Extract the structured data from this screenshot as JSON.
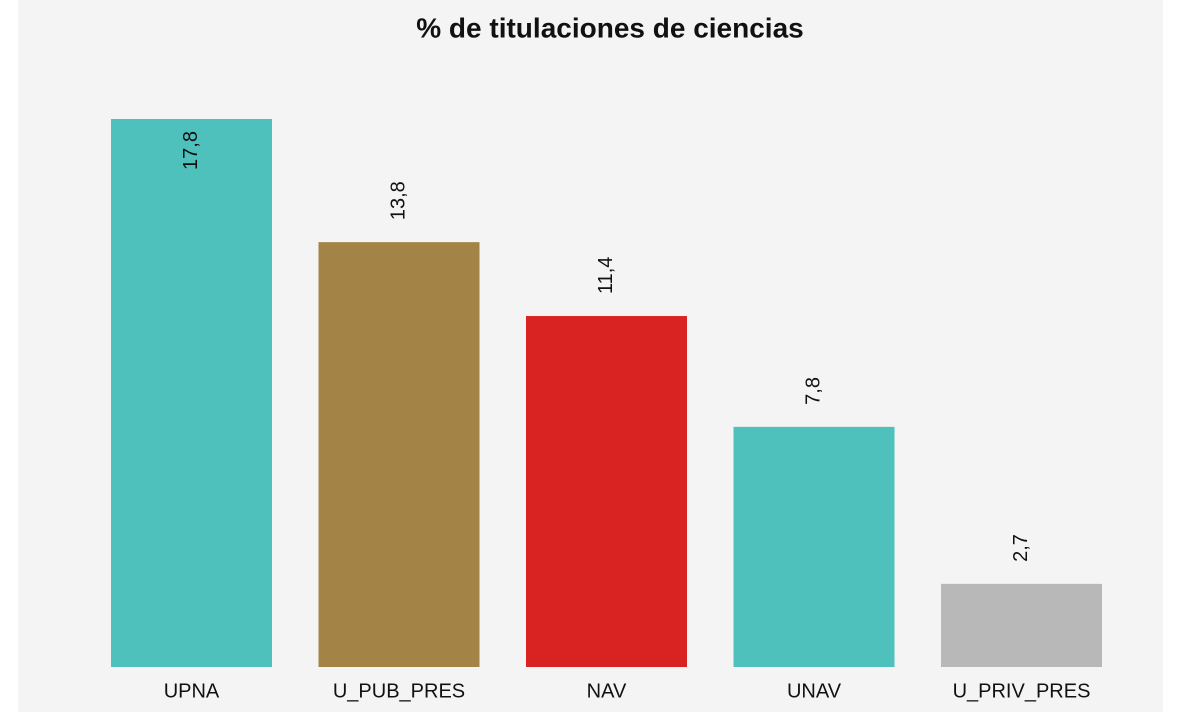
{
  "chart_data": {
    "type": "bar",
    "title": "% de titulaciones de ciencias",
    "categories": [
      "UPNA",
      "U_PUB_PRES",
      "NAV",
      "UNAV",
      "U_PRIV_PRES"
    ],
    "values": [
      17.8,
      13.8,
      11.4,
      7.8,
      2.7
    ],
    "value_labels": [
      "17,8",
      "13,8",
      "11,4",
      "7,8",
      "2,7"
    ],
    "colors": [
      "#4fc1bd",
      "#a38346",
      "#d92323",
      "#4fc1bd",
      "#b8b8b8"
    ]
  }
}
